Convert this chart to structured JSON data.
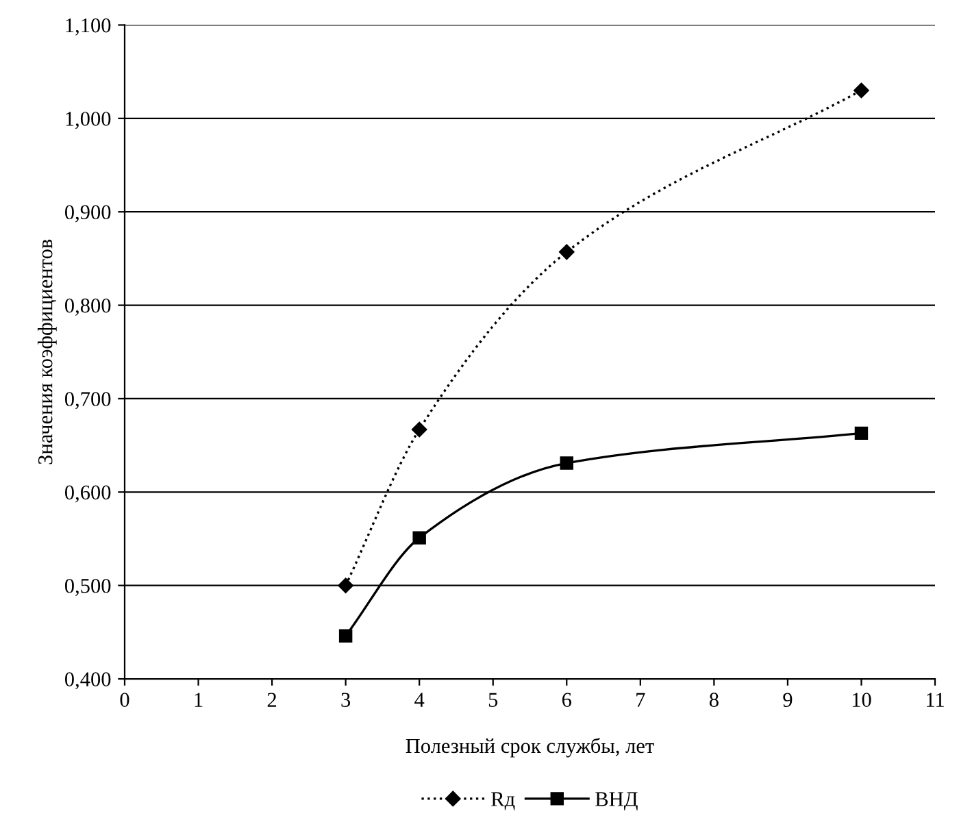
{
  "chart_data": {
    "type": "line",
    "xlabel": "Полезный срок службы, лет",
    "ylabel": "Значения коэффициентов",
    "x": [
      3,
      4,
      6,
      10
    ],
    "series": [
      {
        "name": "Rд",
        "color": "#000000",
        "values": [
          0.5,
          0.667,
          0.857,
          1.03
        ],
        "marker": "diamond",
        "line_style": "dotted"
      },
      {
        "name": "ВНД",
        "color": "#000000",
        "values": [
          0.446,
          0.551,
          0.631,
          0.663
        ],
        "marker": "square",
        "line_style": "solid"
      }
    ],
    "xlim": [
      0,
      11
    ],
    "xticks": [
      0,
      1,
      2,
      3,
      4,
      5,
      6,
      7,
      8,
      9,
      10,
      11
    ],
    "ylim": [
      0.4,
      1.1
    ],
    "yticks": [
      {
        "value": 0.4,
        "label": "0,400"
      },
      {
        "value": 0.5,
        "label": "0,500"
      },
      {
        "value": 0.6,
        "label": "0,600"
      },
      {
        "value": 0.7,
        "label": "0,700"
      },
      {
        "value": 0.8,
        "label": "0,800"
      },
      {
        "value": 0.9,
        "label": "0,900"
      },
      {
        "value": 1.0,
        "label": "1,000"
      },
      {
        "value": 1.1,
        "label": "1,100"
      }
    ],
    "grid": "y",
    "legend": "bottom"
  }
}
